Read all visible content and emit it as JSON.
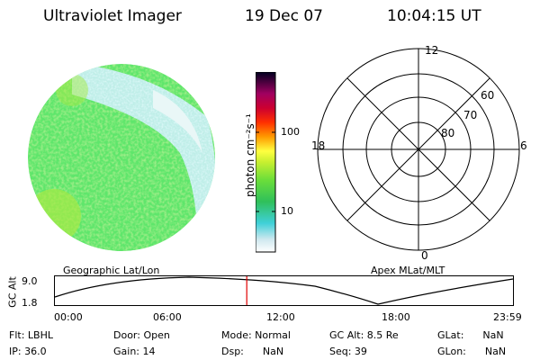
{
  "header": {
    "title": "Ultraviolet Imager",
    "date": "19 Dec 07",
    "time": "10:04:15 UT"
  },
  "colorbar": {
    "unit_label": "photon cm⁻²s⁻¹",
    "tick_100": "100",
    "tick_10": "10"
  },
  "polar_plot": {
    "mlt_12": "12",
    "mlt_18": "18",
    "mlt_6": "6",
    "mlt_0": "0",
    "lat_60": "60",
    "lat_70": "70",
    "lat_80": "80"
  },
  "labels": {
    "geographic": "Geographic Lat/Lon",
    "apex": "Apex MLat/MLT"
  },
  "timeline": {
    "axis_label": "GC Alt",
    "y_max": "9.0",
    "y_min": "1.8",
    "ticks": [
      "00:00",
      "06:00",
      "12:00",
      "18:00",
      "23:59"
    ],
    "current_time_fraction": 0.418
  },
  "status": {
    "flt": "Flt: LBHL",
    "ip": "IP: 36.0",
    "door": "Door: Open",
    "gain": "Gain: 14",
    "mode": "Mode: Normal",
    "dsp": "Dsp:      NaN",
    "gc_alt": "GC Alt: 8.5 Re",
    "seq": "Seq: 39",
    "glat": "GLat:      NaN",
    "glon": "GLon:      NaN"
  },
  "colors": {
    "aurora_green": "#5ee66b",
    "aurora_light": "#c8f0f0",
    "timeline_marker": "#e00000"
  }
}
